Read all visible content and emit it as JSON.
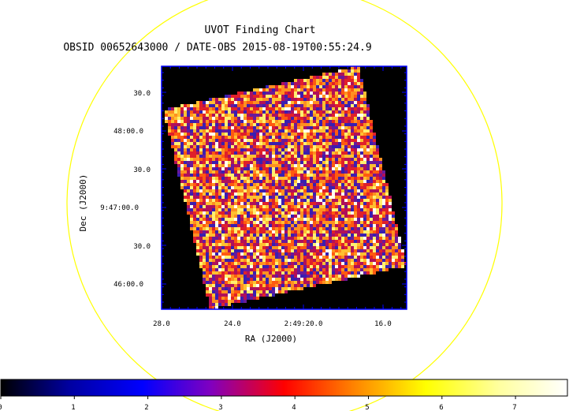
{
  "chart_data": {
    "type": "heatmap",
    "title": "UVOT Finding Chart",
    "subtitle": "OBSID 00652643000 / DATE-OBS 2015-08-19T00:55:24.9",
    "xlabel": "RA (J2000)",
    "ylabel": "Dec (J2000)",
    "x_ticks": [
      "28.0",
      "24.0",
      "2:49:20.0",
      "16.0"
    ],
    "y_ticks": [
      "30.0",
      "48:00.0",
      "30.0",
      "9:47:00.0",
      "30.0",
      "46:00.0"
    ],
    "colorbar": {
      "ticks": [
        "0",
        "1",
        "2",
        "3",
        "4",
        "5",
        "6",
        "7"
      ],
      "range": [
        0,
        7.75
      ],
      "colors": [
        "#000000",
        "#0000ff",
        "#ff0000",
        "#ffff00",
        "#ffffff"
      ]
    },
    "overlay": {
      "shape": "circle",
      "color": "#ffff00"
    },
    "frame_color": "#0000ff",
    "background": "#000000"
  }
}
